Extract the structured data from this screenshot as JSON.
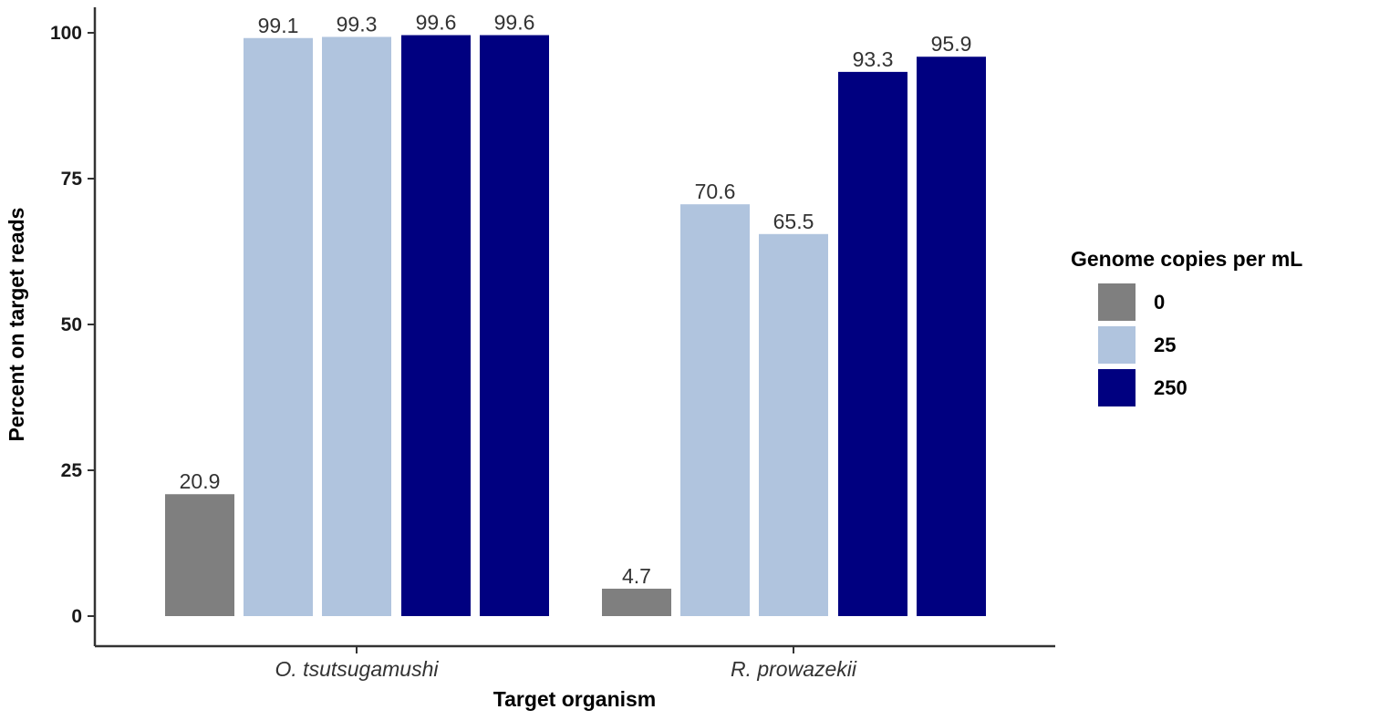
{
  "chart_data": {
    "type": "bar",
    "categories": [
      "O. tsutsugamushi",
      "R. prowazekii"
    ],
    "xlabel": "Target organism",
    "ylabel": "Percent on target reads",
    "ylim": [
      0,
      100
    ],
    "yticks": [
      0,
      25,
      50,
      75,
      100
    ],
    "grid": false,
    "legend": {
      "title": "Genome copies per mL",
      "placement": "right",
      "entries": [
        {
          "label": "0",
          "color": "#7f7f7f"
        },
        {
          "label": "25",
          "color": "#b0c4de"
        },
        {
          "label": "250",
          "color": "#000080"
        }
      ]
    },
    "bars": [
      {
        "category": "O. tsutsugamushi",
        "group": "0",
        "value": 20.9,
        "label": "20.9"
      },
      {
        "category": "O. tsutsugamushi",
        "group": "25",
        "value": 99.1,
        "label": "99.1"
      },
      {
        "category": "O. tsutsugamushi",
        "group": "25",
        "value": 99.3,
        "label": "99.3"
      },
      {
        "category": "O. tsutsugamushi",
        "group": "250",
        "value": 99.6,
        "label": "99.6"
      },
      {
        "category": "O. tsutsugamushi",
        "group": "250",
        "value": 99.6,
        "label": "99.6"
      },
      {
        "category": "R. prowazekii",
        "group": "0",
        "value": 4.7,
        "label": "4.7"
      },
      {
        "category": "R. prowazekii",
        "group": "25",
        "value": 70.6,
        "label": "70.6"
      },
      {
        "category": "R. prowazekii",
        "group": "25",
        "value": 65.5,
        "label": "65.5"
      },
      {
        "category": "R. prowazekii",
        "group": "250",
        "value": 93.3,
        "label": "93.3"
      },
      {
        "category": "R. prowazekii",
        "group": "250",
        "value": 95.9,
        "label": "95.9"
      }
    ]
  }
}
